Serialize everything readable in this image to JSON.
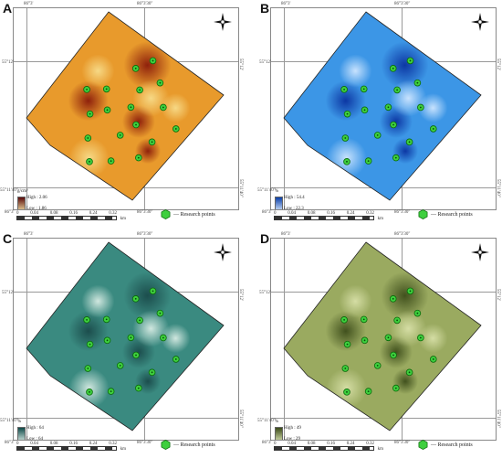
{
  "panels": [
    {
      "label": "A",
      "legend_unit": "g/cm³",
      "legend_high": "High : 2.06",
      "legend_low": "Low : 1.86",
      "ramp": [
        "#5a0a0a",
        "#f5e6a8"
      ],
      "base": "#e89a2c",
      "light": "#f7dc8a",
      "dark": "#8a1a0a"
    },
    {
      "label": "B",
      "legend_unit": "%",
      "legend_high": "High : 54.4",
      "legend_low": "Low : 22.3",
      "ramp": [
        "#0a3fa8",
        "#dfeeff"
      ],
      "base": "#3c96e6",
      "light": "#cfe6ff",
      "dark": "#0a32a0"
    },
    {
      "label": "C",
      "legend_unit": "%",
      "legend_high": "High : 64",
      "legend_low": "Low : 64",
      "ramp": [
        "#0e4a48",
        "#dff0ea"
      ],
      "base": "#3a8a80",
      "light": "#d8ece4",
      "dark": "#1a4a4a"
    },
    {
      "label": "D",
      "legend_unit": "%",
      "legend_high": "High : 49",
      "legend_low": "Low : 29",
      "ramp": [
        "#3a4a18",
        "#dfe8b8"
      ],
      "base": "#9aaa60",
      "light": "#d8e0a8",
      "dark": "#3c4c1a"
    }
  ],
  "coords": {
    "top_left": "86°3'",
    "top_right": "86°3'30\"",
    "right_top": "55°12'",
    "right_bottom": "55°11'40\"",
    "left_top": "55°12'",
    "left_bottom": "55°11'40\"",
    "bottom_left": "86°3'",
    "bottom_right": "86°3'30\""
  },
  "scale": {
    "ticks": [
      "0",
      "0.04",
      "0.08",
      "0.16",
      "0.24",
      "0.32"
    ],
    "unit": "km"
  },
  "key_label": "— Research points",
  "research_points": [
    [
      0.46,
      0.1
    ],
    [
      0.4,
      0.22
    ],
    [
      0.6,
      0.2
    ],
    [
      0.52,
      0.33
    ],
    [
      0.73,
      0.33
    ],
    [
      0.9,
      0.4
    ],
    [
      0.33,
      0.47
    ],
    [
      0.55,
      0.47
    ],
    [
      0.22,
      0.56
    ],
    [
      0.43,
      0.59
    ],
    [
      0.66,
      0.55
    ],
    [
      0.83,
      0.58
    ],
    [
      0.35,
      0.69
    ],
    [
      0.62,
      0.68
    ],
    [
      0.83,
      0.73
    ],
    [
      0.45,
      0.84
    ],
    [
      0.69,
      0.87
    ],
    [
      0.57,
      0.97
    ]
  ],
  "colors": {
    "point_fill": "#3ecf3e",
    "point_stroke": "#0a6a0a"
  }
}
